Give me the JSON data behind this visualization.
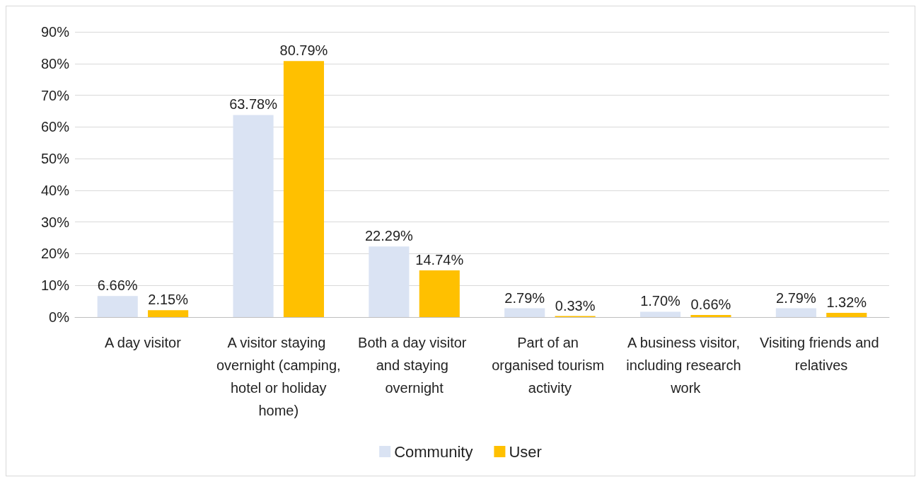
{
  "chart_data": {
    "type": "bar",
    "categories": [
      "A day visitor",
      "A visitor staying overnight (camping, hotel or holiday home)",
      "Both a day visitor and staying overnight",
      "Part of an organised tourism activity",
      "A business visitor, including research work",
      "Visiting friends and relatives"
    ],
    "series": [
      {
        "name": "Community",
        "color": "#dae3f3",
        "values": [
          6.66,
          63.78,
          22.29,
          2.79,
          1.7,
          2.79
        ],
        "value_labels": [
          "6.66%",
          "63.78%",
          "22.29%",
          "2.79%",
          "1.70%",
          "2.79%"
        ]
      },
      {
        "name": "User",
        "color": "#ffc000",
        "values": [
          2.15,
          80.79,
          14.74,
          0.33,
          0.66,
          1.32
        ],
        "value_labels": [
          "2.15%",
          "80.79%",
          "14.74%",
          "0.33%",
          "0.66%",
          "1.32%"
        ]
      }
    ],
    "ylim": [
      0,
      90
    ],
    "yticks": [
      {
        "value": 0,
        "label": "0%"
      },
      {
        "value": 10,
        "label": "10%"
      },
      {
        "value": 20,
        "label": "20%"
      },
      {
        "value": 30,
        "label": "30%"
      },
      {
        "value": 40,
        "label": "40%"
      },
      {
        "value": 50,
        "label": "50%"
      },
      {
        "value": 60,
        "label": "60%"
      },
      {
        "value": 70,
        "label": "70%"
      },
      {
        "value": 80,
        "label": "80%"
      },
      {
        "value": 90,
        "label": "90%"
      }
    ],
    "grid": "y",
    "legend": "bottom"
  }
}
